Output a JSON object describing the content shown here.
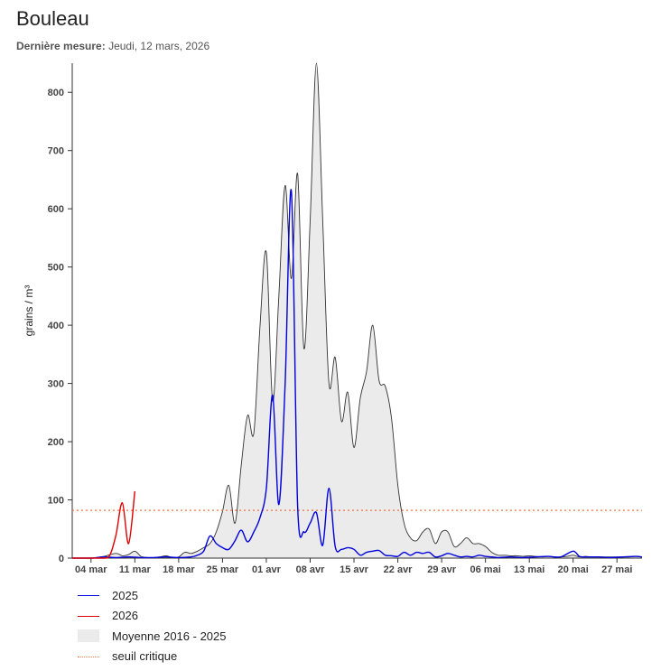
{
  "header": {
    "title": "Bouleau",
    "last_measure_label": "Dernière mesure:",
    "last_measure_value": "Jeudi, 12 mars, 2026"
  },
  "chart_data": {
    "type": "line",
    "ylabel": "grains / m³",
    "ylim": [
      0,
      850
    ],
    "yticks": [
      0,
      100,
      200,
      300,
      400,
      500,
      600,
      700,
      800
    ],
    "x_day_range": [
      0,
      91
    ],
    "x_ticks": [
      {
        "day": 3,
        "label": "04 mar"
      },
      {
        "day": 10,
        "label": "11 mar"
      },
      {
        "day": 17,
        "label": "18 mar"
      },
      {
        "day": 24,
        "label": "25 mar"
      },
      {
        "day": 31,
        "label": "01 avr"
      },
      {
        "day": 38,
        "label": "08 avr"
      },
      {
        "day": 45,
        "label": "15 avr"
      },
      {
        "day": 52,
        "label": "22 avr"
      },
      {
        "day": 59,
        "label": "29 avr"
      },
      {
        "day": 66,
        "label": "06 mai"
      },
      {
        "day": 73,
        "label": "13 mai"
      },
      {
        "day": 80,
        "label": "20 mai"
      },
      {
        "day": 87,
        "label": "27 mai"
      }
    ],
    "threshold": {
      "name": "seuil critique",
      "value": 82,
      "color": "#f07040"
    },
    "series": [
      {
        "name": "Moyenne 2016 - 2025",
        "kind": "area",
        "fill": "#ebebeb",
        "stroke": "#333333",
        "points": [
          [
            0,
            0
          ],
          [
            3,
            0
          ],
          [
            5,
            3
          ],
          [
            7,
            8
          ],
          [
            8,
            4
          ],
          [
            9,
            6
          ],
          [
            10,
            12
          ],
          [
            11,
            3
          ],
          [
            12,
            1
          ],
          [
            13,
            1
          ],
          [
            14,
            2
          ],
          [
            15,
            4
          ],
          [
            16,
            1
          ],
          [
            17,
            2
          ],
          [
            18,
            10
          ],
          [
            19,
            8
          ],
          [
            20,
            12
          ],
          [
            21,
            18
          ],
          [
            22,
            25
          ],
          [
            23,
            45
          ],
          [
            24,
            80
          ],
          [
            25,
            125
          ],
          [
            26,
            60
          ],
          [
            27,
            160
          ],
          [
            28,
            245
          ],
          [
            29,
            215
          ],
          [
            30,
            400
          ],
          [
            31,
            525
          ],
          [
            32,
            270
          ],
          [
            33,
            450
          ],
          [
            34,
            640
          ],
          [
            35,
            480
          ],
          [
            36,
            660
          ],
          [
            37,
            360
          ],
          [
            38,
            580
          ],
          [
            39,
            850
          ],
          [
            40,
            580
          ],
          [
            41,
            300
          ],
          [
            42,
            345
          ],
          [
            43,
            235
          ],
          [
            44,
            285
          ],
          [
            45,
            190
          ],
          [
            46,
            275
          ],
          [
            47,
            320
          ],
          [
            48,
            400
          ],
          [
            49,
            305
          ],
          [
            50,
            295
          ],
          [
            51,
            240
          ],
          [
            52,
            125
          ],
          [
            53,
            60
          ],
          [
            54,
            35
          ],
          [
            55,
            30
          ],
          [
            56,
            45
          ],
          [
            57,
            50
          ],
          [
            58,
            25
          ],
          [
            59,
            45
          ],
          [
            60,
            45
          ],
          [
            61,
            20
          ],
          [
            62,
            25
          ],
          [
            63,
            35
          ],
          [
            64,
            25
          ],
          [
            65,
            25
          ],
          [
            66,
            20
          ],
          [
            67,
            10
          ],
          [
            68,
            5
          ],
          [
            69,
            5
          ],
          [
            70,
            4
          ],
          [
            71,
            4
          ],
          [
            72,
            3
          ],
          [
            73,
            4
          ],
          [
            74,
            3
          ],
          [
            75,
            2
          ],
          [
            76,
            3
          ],
          [
            77,
            2
          ],
          [
            78,
            2
          ],
          [
            79,
            3
          ],
          [
            80,
            5
          ],
          [
            81,
            2
          ],
          [
            82,
            3
          ],
          [
            83,
            2
          ],
          [
            84,
            2
          ],
          [
            85,
            2
          ],
          [
            86,
            2
          ],
          [
            87,
            2
          ],
          [
            88,
            2
          ],
          [
            89,
            2
          ],
          [
            90,
            3
          ],
          [
            91,
            2
          ]
        ]
      },
      {
        "name": "2025",
        "kind": "line",
        "color": "#0000dd",
        "points": [
          [
            0,
            0
          ],
          [
            3,
            0
          ],
          [
            5,
            2
          ],
          [
            7,
            1
          ],
          [
            9,
            2
          ],
          [
            11,
            1
          ],
          [
            13,
            1
          ],
          [
            15,
            2
          ],
          [
            17,
            1
          ],
          [
            19,
            2
          ],
          [
            20,
            5
          ],
          [
            21,
            12
          ],
          [
            22,
            38
          ],
          [
            23,
            25
          ],
          [
            24,
            18
          ],
          [
            25,
            15
          ],
          [
            26,
            30
          ],
          [
            27,
            48
          ],
          [
            28,
            28
          ],
          [
            29,
            45
          ],
          [
            30,
            70
          ],
          [
            31,
            120
          ],
          [
            32,
            280
          ],
          [
            33,
            92
          ],
          [
            34,
            300
          ],
          [
            35,
            630
          ],
          [
            36,
            90
          ],
          [
            37,
            45
          ],
          [
            38,
            60
          ],
          [
            39,
            78
          ],
          [
            40,
            22
          ],
          [
            41,
            120
          ],
          [
            42,
            20
          ],
          [
            43,
            15
          ],
          [
            44,
            18
          ],
          [
            45,
            15
          ],
          [
            46,
            5
          ],
          [
            47,
            10
          ],
          [
            48,
            12
          ],
          [
            49,
            13
          ],
          [
            50,
            5
          ],
          [
            51,
            4
          ],
          [
            52,
            3
          ],
          [
            53,
            10
          ],
          [
            54,
            5
          ],
          [
            55,
            10
          ],
          [
            56,
            8
          ],
          [
            57,
            10
          ],
          [
            58,
            2
          ],
          [
            59,
            4
          ],
          [
            60,
            8
          ],
          [
            61,
            5
          ],
          [
            62,
            2
          ],
          [
            63,
            3
          ],
          [
            64,
            2
          ],
          [
            65,
            5
          ],
          [
            66,
            3
          ],
          [
            67,
            2
          ],
          [
            68,
            1
          ],
          [
            70,
            2
          ],
          [
            72,
            1
          ],
          [
            74,
            2
          ],
          [
            76,
            3
          ],
          [
            78,
            2
          ],
          [
            80,
            12
          ],
          [
            81,
            3
          ],
          [
            82,
            2
          ],
          [
            84,
            2
          ],
          [
            86,
            1
          ],
          [
            88,
            2
          ],
          [
            90,
            3
          ],
          [
            91,
            2
          ]
        ]
      },
      {
        "name": "2026",
        "kind": "line",
        "color": "#dd0000",
        "points": [
          [
            0,
            0
          ],
          [
            5,
            0
          ],
          [
            6,
            5
          ],
          [
            7,
            40
          ],
          [
            8,
            95
          ],
          [
            9,
            25
          ],
          [
            10,
            115
          ]
        ]
      }
    ]
  },
  "legend": {
    "items": [
      {
        "label": "2025",
        "symbol": "line",
        "color": "#0000dd"
      },
      {
        "label": "2026",
        "symbol": "line",
        "color": "#dd0000"
      },
      {
        "label": "Moyenne 2016 - 2025",
        "symbol": "area",
        "color": "#ebebeb"
      },
      {
        "label": "seuil critique",
        "symbol": "dash",
        "color": "#f07040"
      }
    ]
  }
}
